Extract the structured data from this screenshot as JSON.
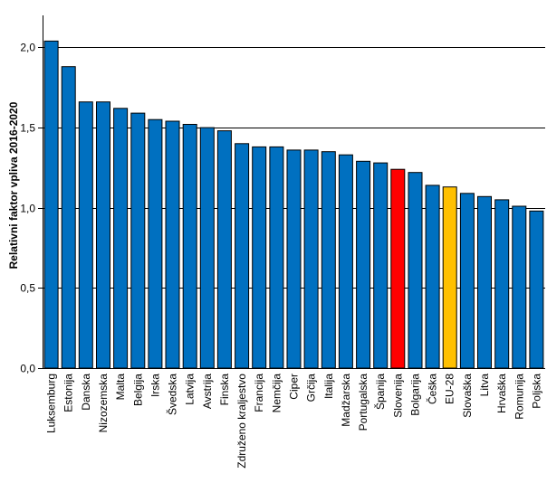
{
  "chart_data": {
    "type": "bar",
    "title": "",
    "xlabel": "",
    "ylabel": "Relativni faktor vpliva 2016-2020",
    "ylim": [
      0,
      2.2
    ],
    "yticks": [
      0.0,
      0.5,
      1.0,
      1.5,
      2.0
    ],
    "ytick_labels": [
      "0,0",
      "0,5",
      "1,0",
      "1,5",
      "2,0"
    ],
    "grid": "horizontal",
    "colors": {
      "default": "#0070C0",
      "Slovenija": "#FF0000",
      "EU-28": "#FFC000",
      "outline": "#000000",
      "grid": "#000000"
    },
    "categories": [
      "Luksemburg",
      "Estonija",
      "Danska",
      "Nizozemska",
      "Malta",
      "Belgija",
      "Irska",
      "Švedska",
      "Latvija",
      "Avstrija",
      "Finska",
      "Združeno kraljestvo",
      "Francija",
      "Nemčija",
      "Ciper",
      "Grčija",
      "Italija",
      "Madžarska",
      "Portugalska",
      "Španija",
      "Slovenija",
      "Bolgarija",
      "Češka",
      "EU-28",
      "Slovaška",
      "Litva",
      "Hrvaška",
      "Romunija",
      "Poljska"
    ],
    "values": [
      2.04,
      1.88,
      1.66,
      1.66,
      1.62,
      1.59,
      1.55,
      1.54,
      1.52,
      1.5,
      1.48,
      1.4,
      1.38,
      1.38,
      1.36,
      1.36,
      1.35,
      1.33,
      1.29,
      1.28,
      1.24,
      1.22,
      1.14,
      1.13,
      1.09,
      1.07,
      1.05,
      1.01,
      0.98
    ]
  }
}
